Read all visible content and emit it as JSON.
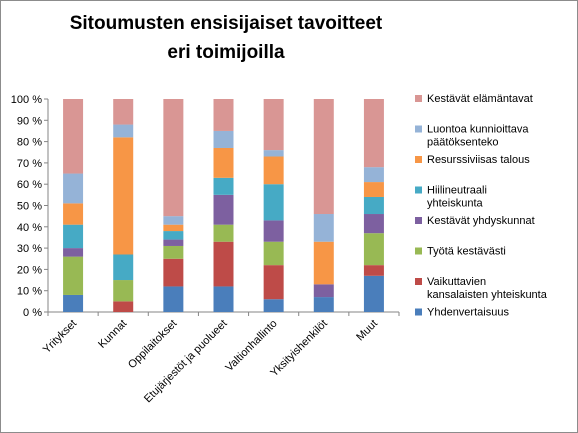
{
  "chart_data": {
    "type": "bar",
    "stacked": true,
    "title": "Sitoumusten ensisijaiset tavoitteet eri toimijoilla",
    "xlabel": "",
    "ylabel": "",
    "ylim": [
      0,
      100
    ],
    "ytick_labels": [
      "0 %",
      "10 %",
      "20 %",
      "30 %",
      "40 %",
      "50 %",
      "60 %",
      "70 %",
      "80 %",
      "90 %",
      "100 %"
    ],
    "grid": false,
    "legend_position": "right",
    "categories": [
      "Yritykset",
      "Kunnat",
      "Oppilaitokset",
      "Etujärjestöt ja puolueet",
      "Valtionhallinto",
      "Yksityishenkilöt",
      "Muut"
    ],
    "series": [
      {
        "name": "Yhdenvertaisuus",
        "color": "#4a7ebb",
        "values": [
          8,
          0,
          12,
          12,
          6,
          7,
          17
        ]
      },
      {
        "name": "Vaikuttavien kansalaisten yhteiskunta",
        "color": "#be4b48",
        "values": [
          0,
          5,
          13,
          21,
          16,
          0,
          5
        ]
      },
      {
        "name": "Työtä kestävästi",
        "color": "#98b954",
        "values": [
          18,
          10,
          6,
          8,
          11,
          0,
          15
        ]
      },
      {
        "name": "Kestävät yhdyskunnat",
        "color": "#7d60a0",
        "values": [
          4,
          0,
          3,
          14,
          10,
          6,
          9
        ]
      },
      {
        "name": "Hiilineutraali yhteiskunta",
        "color": "#46aac5",
        "values": [
          11,
          12,
          4,
          8,
          17,
          0,
          8
        ]
      },
      {
        "name": "Resurssiviisas talous",
        "color": "#f79646",
        "values": [
          10,
          55,
          3,
          14,
          13,
          20,
          7
        ]
      },
      {
        "name": "Luontoa kunnioittava päätöksenteko",
        "color": "#95b3d7",
        "values": [
          14,
          6,
          4,
          8,
          3,
          13,
          7
        ]
      },
      {
        "name": "Kestävät elämäntavat",
        "color": "#d99694",
        "values": [
          35,
          12,
          55,
          15,
          24,
          54,
          32
        ]
      }
    ]
  }
}
